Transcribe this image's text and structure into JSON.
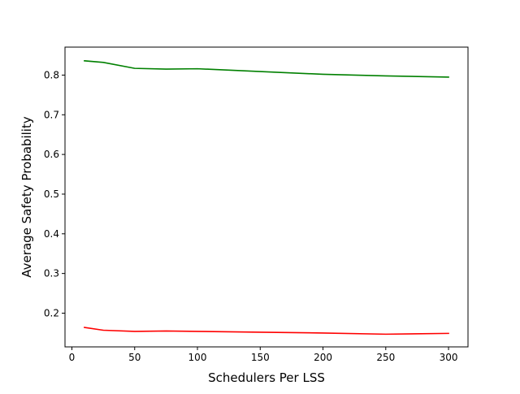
{
  "chart_data": {
    "type": "line",
    "title": "",
    "xlabel": "Schedulers Per LSS",
    "ylabel": "Average Safety Probability",
    "xlim": [
      -5.5,
      315.5
    ],
    "ylim": [
      0.115,
      0.8705
    ],
    "xticks": [
      0,
      50,
      100,
      150,
      200,
      250,
      300
    ],
    "yticks": [
      0.2,
      0.3,
      0.4,
      0.5,
      0.6,
      0.7,
      0.8
    ],
    "grid": false,
    "legend": null,
    "series": [
      {
        "color": "#008000",
        "x": [
          10,
          25,
          50,
          75,
          100,
          150,
          200,
          250,
          300
        ],
        "y": [
          0.836,
          0.832,
          0.817,
          0.815,
          0.816,
          0.809,
          0.802,
          0.798,
          0.795
        ]
      },
      {
        "color": "#ff0000",
        "x": [
          10,
          25,
          50,
          75,
          100,
          150,
          200,
          250,
          300
        ],
        "y": [
          0.164,
          0.157,
          0.154,
          0.155,
          0.154,
          0.152,
          0.15,
          0.147,
          0.149
        ]
      }
    ]
  }
}
